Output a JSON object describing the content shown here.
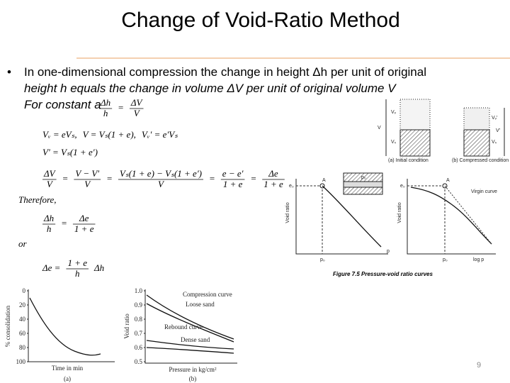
{
  "header": {
    "title": "Change of Void-Ratio Method"
  },
  "bullet": {
    "marker": "•",
    "lines": [
      "In one-dimensional compression the change in height Δh per unit of original",
      "height h equals the change in volume ΔV per unit of original volume V",
      "For constant a"
    ]
  },
  "equations": [
    {
      "parts": [
        {
          "num": "Δh",
          "den": "h"
        },
        "=",
        {
          "num": "ΔV",
          "den": "V"
        }
      ]
    },
    {
      "parts": [
        "Vᵥ = eVₛ,",
        "V = Vₛ(1 + e),",
        "Vᵥ′ = e′Vₛ"
      ]
    },
    {
      "parts": [
        "V′ = Vₛ(1 + e′)"
      ]
    },
    {
      "parts": [
        {
          "num": "ΔV",
          "den": "V"
        },
        "=",
        {
          "num": "V − V′",
          "den": "V"
        },
        "=",
        {
          "num": "Vₛ(1 + e) − Vₛ(1 + e′)",
          "den": "V"
        },
        "=",
        {
          "num": "e − e′",
          "den": "1 + e"
        },
        "=",
        {
          "num": "Δe",
          "den": "1 + e"
        }
      ]
    },
    {
      "parts": [
        "Therefore,"
      ]
    },
    {
      "parts": [
        {
          "num": "Δh",
          "den": "h"
        },
        "=",
        {
          "num": "Δe",
          "den": "1 + e"
        }
      ]
    },
    {
      "parts": [
        "or"
      ]
    },
    {
      "parts": [
        "Δe =",
        {
          "num": "1 + e",
          "den": "h"
        },
        "Δh"
      ]
    }
  ],
  "phase_diagram": {
    "labels": [
      "Vᵥ",
      "Vₛ",
      "V",
      "Vᵥ′",
      "Vₛ",
      "V′"
    ],
    "captions": [
      "(a) Initial condition",
      "(b) Compressed condition"
    ]
  },
  "pressure_void": {
    "left": {
      "y_label": "Void ratio",
      "e0": "e₀",
      "point": "A",
      "p0": "p₀",
      "x_label": "p"
    },
    "right": {
      "y_label": "Void ratio",
      "e0": "e₀",
      "point": "A",
      "p0": "p₀",
      "x_label": "log p",
      "note": "Virgin curve"
    },
    "inset_label": "p₀",
    "caption": "Figure 7.5  Pressure-void ratio curves"
  },
  "consolidation_graph": {
    "y_label": "% consolidation",
    "y_ticks": [
      "0",
      "20",
      "40",
      "60",
      "80",
      "100"
    ],
    "x_label": "Time in min",
    "caption": "(a)"
  },
  "sand_graph": {
    "y_label": "Void ratio",
    "y_ticks": [
      "1.0",
      "0.9",
      "0.8",
      "0.7",
      "0.6",
      "0.5"
    ],
    "notes": [
      "Compression curve",
      "Loose sand",
      "Rebound curve",
      "Dense sand"
    ],
    "x_label": "Pressure in kg/cm²",
    "caption": "(b)"
  },
  "page_number": "9"
}
